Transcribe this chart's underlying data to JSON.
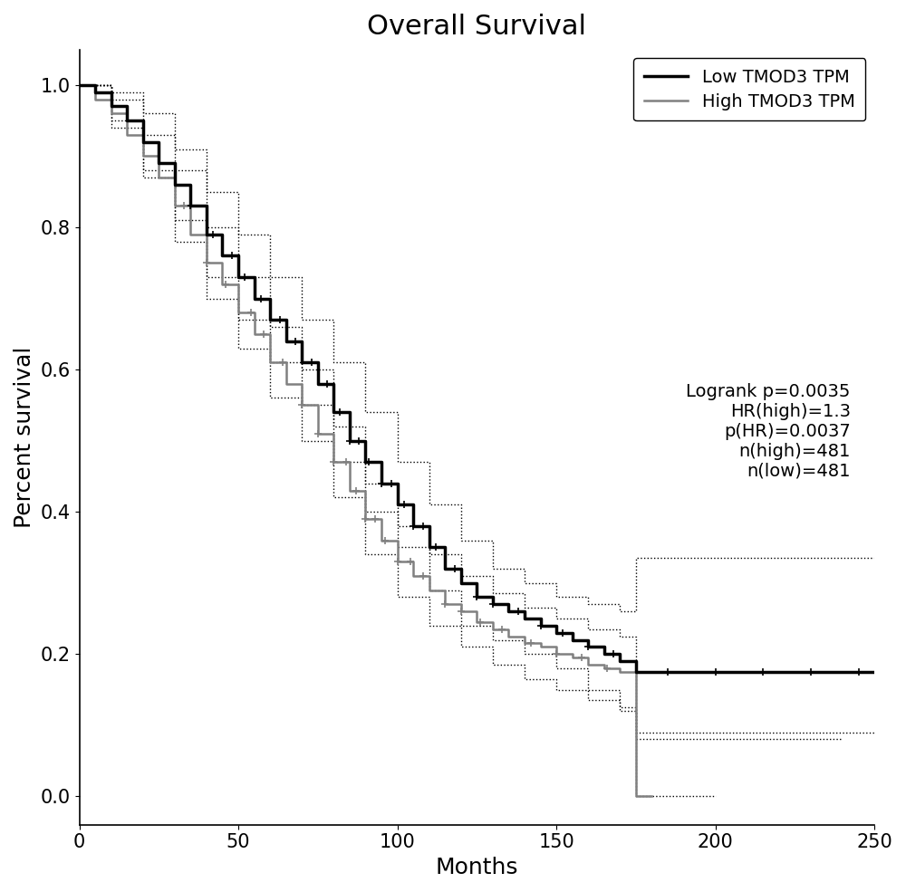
{
  "title": "Overall Survival",
  "xlabel": "Months",
  "ylabel": "Percent survival",
  "xlim": [
    0,
    250
  ],
  "ylim": [
    -0.04,
    1.05
  ],
  "yticks": [
    0.0,
    0.2,
    0.4,
    0.6,
    0.8,
    1.0
  ],
  "xticks": [
    0,
    50,
    100,
    150,
    200,
    250
  ],
  "legend_labels": [
    "Low TMOD3 TPM",
    "High TMOD3 TPM"
  ],
  "stats_text": "Logrank p=0.0035\nHR(high)=1.3\np(HR)=0.0037\nn(high)=481\nn(low)=481",
  "low_color": "#000000",
  "high_color": "#808080",
  "ci_color": "#000000",
  "title_fontsize": 22,
  "label_fontsize": 18,
  "tick_fontsize": 15,
  "legend_fontsize": 14,
  "stats_fontsize": 14,
  "low_lw": 2.5,
  "high_lw": 1.8,
  "ci_lw": 1.0,
  "low_survival": [
    [
      0,
      1.0
    ],
    [
      5,
      0.99
    ],
    [
      10,
      0.97
    ],
    [
      15,
      0.95
    ],
    [
      20,
      0.92
    ],
    [
      25,
      0.89
    ],
    [
      30,
      0.86
    ],
    [
      35,
      0.83
    ],
    [
      40,
      0.79
    ],
    [
      45,
      0.76
    ],
    [
      50,
      0.73
    ],
    [
      55,
      0.7
    ],
    [
      60,
      0.67
    ],
    [
      65,
      0.64
    ],
    [
      70,
      0.61
    ],
    [
      75,
      0.58
    ],
    [
      80,
      0.54
    ],
    [
      85,
      0.5
    ],
    [
      90,
      0.47
    ],
    [
      95,
      0.44
    ],
    [
      100,
      0.41
    ],
    [
      105,
      0.38
    ],
    [
      110,
      0.35
    ],
    [
      115,
      0.32
    ],
    [
      120,
      0.3
    ],
    [
      125,
      0.28
    ],
    [
      130,
      0.27
    ],
    [
      135,
      0.26
    ],
    [
      140,
      0.25
    ],
    [
      145,
      0.24
    ],
    [
      150,
      0.23
    ],
    [
      155,
      0.22
    ],
    [
      160,
      0.21
    ],
    [
      165,
      0.2
    ],
    [
      170,
      0.19
    ],
    [
      175,
      0.175
    ],
    [
      180,
      0.175
    ],
    [
      185,
      0.175
    ],
    [
      190,
      0.175
    ],
    [
      195,
      0.175
    ],
    [
      200,
      0.175
    ],
    [
      205,
      0.175
    ],
    [
      210,
      0.175
    ],
    [
      215,
      0.175
    ],
    [
      220,
      0.175
    ],
    [
      225,
      0.175
    ],
    [
      230,
      0.175
    ],
    [
      235,
      0.175
    ],
    [
      240,
      0.175
    ],
    [
      245,
      0.175
    ],
    [
      250,
      0.175
    ]
  ],
  "low_ci_upper": [
    [
      0,
      1.0
    ],
    [
      10,
      0.99
    ],
    [
      20,
      0.96
    ],
    [
      30,
      0.91
    ],
    [
      40,
      0.85
    ],
    [
      50,
      0.79
    ],
    [
      60,
      0.73
    ],
    [
      70,
      0.67
    ],
    [
      80,
      0.61
    ],
    [
      90,
      0.54
    ],
    [
      100,
      0.47
    ],
    [
      110,
      0.41
    ],
    [
      120,
      0.36
    ],
    [
      130,
      0.32
    ],
    [
      140,
      0.3
    ],
    [
      150,
      0.28
    ],
    [
      160,
      0.27
    ],
    [
      170,
      0.26
    ],
    [
      175,
      0.335
    ],
    [
      180,
      0.335
    ],
    [
      200,
      0.335
    ],
    [
      220,
      0.335
    ],
    [
      240,
      0.335
    ],
    [
      250,
      0.335
    ]
  ],
  "low_ci_lower": [
    [
      0,
      1.0
    ],
    [
      10,
      0.95
    ],
    [
      20,
      0.88
    ],
    [
      30,
      0.81
    ],
    [
      40,
      0.73
    ],
    [
      50,
      0.67
    ],
    [
      60,
      0.61
    ],
    [
      70,
      0.55
    ],
    [
      80,
      0.47
    ],
    [
      90,
      0.4
    ],
    [
      100,
      0.35
    ],
    [
      110,
      0.29
    ],
    [
      120,
      0.24
    ],
    [
      130,
      0.22
    ],
    [
      140,
      0.2
    ],
    [
      150,
      0.18
    ],
    [
      160,
      0.15
    ],
    [
      170,
      0.12
    ],
    [
      175,
      0.09
    ],
    [
      180,
      0.09
    ],
    [
      200,
      0.09
    ],
    [
      220,
      0.09
    ],
    [
      240,
      0.09
    ],
    [
      250,
      0.09
    ]
  ],
  "high_survival": [
    [
      0,
      1.0
    ],
    [
      5,
      0.98
    ],
    [
      10,
      0.96
    ],
    [
      15,
      0.93
    ],
    [
      20,
      0.9
    ],
    [
      25,
      0.87
    ],
    [
      30,
      0.83
    ],
    [
      35,
      0.79
    ],
    [
      40,
      0.75
    ],
    [
      45,
      0.72
    ],
    [
      50,
      0.68
    ],
    [
      55,
      0.65
    ],
    [
      60,
      0.61
    ],
    [
      65,
      0.58
    ],
    [
      70,
      0.55
    ],
    [
      75,
      0.51
    ],
    [
      80,
      0.47
    ],
    [
      85,
      0.43
    ],
    [
      90,
      0.39
    ],
    [
      95,
      0.36
    ],
    [
      100,
      0.33
    ],
    [
      105,
      0.31
    ],
    [
      110,
      0.29
    ],
    [
      115,
      0.27
    ],
    [
      120,
      0.26
    ],
    [
      125,
      0.245
    ],
    [
      130,
      0.235
    ],
    [
      135,
      0.225
    ],
    [
      140,
      0.215
    ],
    [
      145,
      0.21
    ],
    [
      150,
      0.2
    ],
    [
      155,
      0.195
    ],
    [
      160,
      0.185
    ],
    [
      165,
      0.18
    ],
    [
      170,
      0.175
    ],
    [
      175,
      0.0
    ],
    [
      180,
      0.0
    ]
  ],
  "high_ci_upper": [
    [
      0,
      1.0
    ],
    [
      10,
      0.98
    ],
    [
      20,
      0.93
    ],
    [
      30,
      0.88
    ],
    [
      40,
      0.8
    ],
    [
      50,
      0.73
    ],
    [
      60,
      0.66
    ],
    [
      70,
      0.6
    ],
    [
      80,
      0.52
    ],
    [
      90,
      0.44
    ],
    [
      100,
      0.38
    ],
    [
      110,
      0.34
    ],
    [
      120,
      0.31
    ],
    [
      130,
      0.285
    ],
    [
      140,
      0.265
    ],
    [
      150,
      0.25
    ],
    [
      160,
      0.235
    ],
    [
      170,
      0.225
    ],
    [
      175,
      0.08
    ],
    [
      180,
      0.08
    ],
    [
      200,
      0.08
    ],
    [
      220,
      0.08
    ],
    [
      240,
      0.08
    ]
  ],
  "high_ci_lower": [
    [
      0,
      1.0
    ],
    [
      10,
      0.94
    ],
    [
      20,
      0.87
    ],
    [
      30,
      0.78
    ],
    [
      40,
      0.7
    ],
    [
      50,
      0.63
    ],
    [
      60,
      0.56
    ],
    [
      70,
      0.5
    ],
    [
      80,
      0.42
    ],
    [
      90,
      0.34
    ],
    [
      100,
      0.28
    ],
    [
      110,
      0.24
    ],
    [
      120,
      0.21
    ],
    [
      130,
      0.185
    ],
    [
      140,
      0.165
    ],
    [
      150,
      0.15
    ],
    [
      160,
      0.135
    ],
    [
      170,
      0.125
    ],
    [
      175,
      0.0
    ],
    [
      180,
      0.0
    ],
    [
      200,
      0.0
    ]
  ],
  "low_censors": [
    35,
    42,
    48,
    52,
    57,
    63,
    68,
    73,
    78,
    82,
    85,
    88,
    91,
    95,
    98,
    102,
    105,
    108,
    112,
    118,
    125,
    130,
    138,
    145,
    152,
    160,
    168,
    185,
    200,
    215,
    230,
    245
  ],
  "high_censors": [
    33,
    40,
    46,
    54,
    58,
    64,
    70,
    75,
    80,
    84,
    87,
    90,
    93,
    96,
    100,
    104,
    108,
    115,
    120,
    126,
    133,
    142,
    150,
    158,
    166
  ]
}
